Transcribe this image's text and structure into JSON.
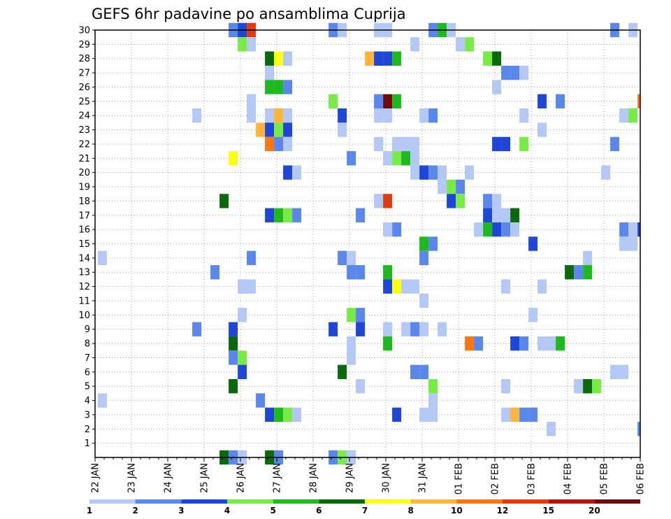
{
  "chart_data": {
    "type": "heatmap",
    "title": "GEFS 6hr padavine po ansamblima Cuprija",
    "xlabel": "",
    "ylabel": "",
    "x_tick_labels": [
      "22 JAN",
      "23 JAN",
      "24 JAN",
      "25 JAN",
      "26 JAN",
      "27 JAN",
      "28 JAN",
      "29 JAN",
      "30 JAN",
      "31 JAN",
      "01 FEB",
      "02 FEB",
      "03 FEB",
      "04 FEB",
      "05 FEB",
      "06 FEB"
    ],
    "y_tick_labels": [
      "1",
      "2",
      "3",
      "4",
      "5",
      "6",
      "7",
      "8",
      "9",
      "10",
      "11",
      "12",
      "13",
      "14",
      "15",
      "16",
      "17",
      "18",
      "19",
      "20",
      "21",
      "22",
      "23",
      "24",
      "25",
      "26",
      "27",
      "28",
      "29",
      "30"
    ],
    "x_range_steps": [
      0,
      60
    ],
    "x_step": "6hr",
    "y_range": [
      0,
      30
    ],
    "grid": true,
    "colorbar": {
      "labels": [
        "1",
        "2",
        "3",
        "4",
        "5",
        "6",
        "7",
        "8",
        "10",
        "12",
        "15",
        "20"
      ],
      "colors": [
        "#b4c8f5",
        "#5a87eb",
        "#1e46d7",
        "#78eb46",
        "#1eb91e",
        "#0a690a",
        "#ffff14",
        "#ffb43c",
        "#fa7814",
        "#e13c0f",
        "#b4140f",
        "#6e0a0a"
      ]
    },
    "cells": [
      [
        14.7,
        30,
        1
      ],
      [
        15.7,
        30,
        2
      ],
      [
        16.7,
        30,
        9
      ],
      [
        25.7,
        30,
        1
      ],
      [
        26.7,
        30,
        0
      ],
      [
        30.7,
        30,
        0
      ],
      [
        31.7,
        30,
        0
      ],
      [
        36.7,
        30,
        1
      ],
      [
        37.7,
        30,
        4
      ],
      [
        38.7,
        30,
        0
      ],
      [
        56.7,
        30,
        1
      ],
      [
        58.7,
        30,
        0
      ],
      [
        15.7,
        29,
        3
      ],
      [
        16.7,
        29,
        0
      ],
      [
        34.7,
        29,
        0
      ],
      [
        39.7,
        29,
        0
      ],
      [
        40.7,
        29,
        3
      ],
      [
        18.7,
        28,
        5
      ],
      [
        19.7,
        28,
        6
      ],
      [
        20.7,
        28,
        0
      ],
      [
        29.7,
        28,
        7
      ],
      [
        30.7,
        28,
        2
      ],
      [
        31.7,
        28,
        2
      ],
      [
        32.7,
        28,
        4
      ],
      [
        42.7,
        28,
        3
      ],
      [
        43.7,
        28,
        5
      ],
      [
        18.7,
        27,
        0
      ],
      [
        44.7,
        27,
        1
      ],
      [
        45.7,
        27,
        1
      ],
      [
        46.7,
        27,
        0
      ],
      [
        18.7,
        26,
        4
      ],
      [
        19.7,
        26,
        4
      ],
      [
        20.7,
        26,
        1
      ],
      [
        43.7,
        26,
        0
      ],
      [
        16.7,
        25,
        0
      ],
      [
        25.7,
        25,
        3
      ],
      [
        30.7,
        25,
        1
      ],
      [
        31.7,
        25,
        11
      ],
      [
        32.7,
        25,
        4
      ],
      [
        48.7,
        25,
        2
      ],
      [
        50.7,
        25,
        1
      ],
      [
        59.7,
        25,
        8
      ],
      [
        10.7,
        24,
        0
      ],
      [
        16.7,
        24,
        0
      ],
      [
        18.7,
        24,
        0
      ],
      [
        19.7,
        24,
        7
      ],
      [
        20.7,
        24,
        0
      ],
      [
        26.7,
        24,
        2
      ],
      [
        30.7,
        24,
        0
      ],
      [
        31.7,
        24,
        0
      ],
      [
        35.7,
        24,
        0
      ],
      [
        36.7,
        24,
        1
      ],
      [
        46.7,
        24,
        0
      ],
      [
        57.7,
        24,
        0
      ],
      [
        58.7,
        24,
        3
      ],
      [
        17.7,
        23,
        7
      ],
      [
        18.7,
        23,
        2
      ],
      [
        19.7,
        23,
        3
      ],
      [
        20.7,
        23,
        2
      ],
      [
        26.7,
        23,
        0
      ],
      [
        48.7,
        23,
        0
      ],
      [
        18.7,
        22,
        8
      ],
      [
        19.7,
        22,
        1
      ],
      [
        20.7,
        22,
        0
      ],
      [
        30.7,
        22,
        0
      ],
      [
        32.7,
        22,
        0
      ],
      [
        33.7,
        22,
        0
      ],
      [
        34.7,
        22,
        0
      ],
      [
        43.7,
        22,
        2
      ],
      [
        44.7,
        22,
        2
      ],
      [
        46.7,
        22,
        3
      ],
      [
        56.7,
        22,
        1
      ],
      [
        14.7,
        21,
        6
      ],
      [
        27.7,
        21,
        1
      ],
      [
        31.7,
        21,
        0
      ],
      [
        32.7,
        21,
        3
      ],
      [
        33.7,
        21,
        4
      ],
      [
        34.7,
        21,
        0
      ],
      [
        20.7,
        20,
        2
      ],
      [
        21.7,
        20,
        0
      ],
      [
        34.7,
        20,
        0
      ],
      [
        35.7,
        20,
        2
      ],
      [
        36.7,
        20,
        1
      ],
      [
        37.7,
        20,
        0
      ],
      [
        40.7,
        20,
        0
      ],
      [
        55.7,
        20,
        0
      ],
      [
        37.7,
        19,
        0
      ],
      [
        38.7,
        19,
        3
      ],
      [
        39.7,
        19,
        1
      ],
      [
        13.7,
        18,
        5
      ],
      [
        30.7,
        18,
        0
      ],
      [
        31.7,
        18,
        9
      ],
      [
        38.7,
        18,
        2
      ],
      [
        39.7,
        18,
        3
      ],
      [
        42.7,
        18,
        1
      ],
      [
        43.7,
        18,
        0
      ],
      [
        18.7,
        17,
        2
      ],
      [
        19.7,
        17,
        4
      ],
      [
        20.7,
        17,
        3
      ],
      [
        21.7,
        17,
        1
      ],
      [
        28.7,
        17,
        1
      ],
      [
        42.7,
        17,
        2
      ],
      [
        43.7,
        17,
        0
      ],
      [
        44.7,
        17,
        0
      ],
      [
        45.7,
        17,
        5
      ],
      [
        31.7,
        16,
        0
      ],
      [
        32.7,
        16,
        1
      ],
      [
        41.7,
        16,
        0
      ],
      [
        42.7,
        16,
        4
      ],
      [
        43.7,
        16,
        2
      ],
      [
        44.7,
        16,
        1
      ],
      [
        45.7,
        16,
        0
      ],
      [
        57.7,
        16,
        1
      ],
      [
        58.7,
        16,
        0
      ],
      [
        59.7,
        16,
        2
      ],
      [
        35.7,
        15,
        4
      ],
      [
        36.7,
        15,
        1
      ],
      [
        47.7,
        15,
        2
      ],
      [
        57.7,
        15,
        0
      ],
      [
        58.7,
        15,
        0
      ],
      [
        0.3,
        14,
        0
      ],
      [
        16.7,
        14,
        1
      ],
      [
        26.7,
        14,
        1
      ],
      [
        27.7,
        14,
        0
      ],
      [
        35.7,
        14,
        1
      ],
      [
        53.7,
        14,
        0
      ],
      [
        12.7,
        13,
        1
      ],
      [
        27.7,
        13,
        1
      ],
      [
        28.7,
        13,
        1
      ],
      [
        31.7,
        13,
        4
      ],
      [
        51.7,
        13,
        5
      ],
      [
        52.7,
        13,
        1
      ],
      [
        53.7,
        13,
        4
      ],
      [
        15.7,
        12,
        0
      ],
      [
        16.7,
        12,
        0
      ],
      [
        31.7,
        12,
        2
      ],
      [
        32.7,
        12,
        6
      ],
      [
        33.7,
        12,
        0
      ],
      [
        34.7,
        12,
        0
      ],
      [
        44.7,
        12,
        0
      ],
      [
        48.7,
        12,
        0
      ],
      [
        35.7,
        11,
        0
      ],
      [
        15.7,
        10,
        0
      ],
      [
        27.7,
        10,
        3
      ],
      [
        28.7,
        10,
        1
      ],
      [
        47.7,
        10,
        0
      ],
      [
        10.7,
        9,
        1
      ],
      [
        14.7,
        9,
        2
      ],
      [
        25.7,
        9,
        2
      ],
      [
        28.7,
        9,
        2
      ],
      [
        31.7,
        9,
        0
      ],
      [
        33.7,
        9,
        0
      ],
      [
        34.7,
        9,
        1
      ],
      [
        35.7,
        9,
        0
      ],
      [
        37.7,
        9,
        0
      ],
      [
        14.7,
        8,
        5
      ],
      [
        27.7,
        8,
        0
      ],
      [
        31.7,
        8,
        4
      ],
      [
        40.7,
        8,
        8
      ],
      [
        41.7,
        8,
        1
      ],
      [
        45.7,
        8,
        2
      ],
      [
        46.7,
        8,
        1
      ],
      [
        48.7,
        8,
        0
      ],
      [
        49.7,
        8,
        0
      ],
      [
        50.7,
        8,
        4
      ],
      [
        14.7,
        7,
        1
      ],
      [
        15.7,
        7,
        3
      ],
      [
        27.7,
        7,
        0
      ],
      [
        15.7,
        6,
        2
      ],
      [
        26.7,
        6,
        5
      ],
      [
        34.7,
        6,
        1
      ],
      [
        35.7,
        6,
        1
      ],
      [
        56.7,
        6,
        0
      ],
      [
        57.7,
        6,
        0
      ],
      [
        14.7,
        5,
        5
      ],
      [
        28.7,
        5,
        0
      ],
      [
        36.7,
        5,
        3
      ],
      [
        44.7,
        5,
        0
      ],
      [
        52.7,
        5,
        0
      ],
      [
        53.7,
        5,
        5
      ],
      [
        54.7,
        5,
        3
      ],
      [
        0.3,
        4,
        0
      ],
      [
        17.7,
        4,
        1
      ],
      [
        36.7,
        4,
        0
      ],
      [
        18.7,
        3,
        2
      ],
      [
        19.7,
        3,
        4
      ],
      [
        20.7,
        3,
        3
      ],
      [
        21.7,
        3,
        0
      ],
      [
        32.7,
        3,
        2
      ],
      [
        35.7,
        3,
        0
      ],
      [
        36.7,
        3,
        0
      ],
      [
        44.7,
        3,
        0
      ],
      [
        45.7,
        3,
        7
      ],
      [
        46.7,
        3,
        1
      ],
      [
        47.7,
        3,
        1
      ],
      [
        49.7,
        2,
        0
      ],
      [
        59.7,
        2,
        1
      ],
      [
        13.7,
        0,
        5
      ],
      [
        14.7,
        0,
        1
      ],
      [
        15.7,
        0,
        0
      ],
      [
        18.7,
        0,
        5
      ],
      [
        19.7,
        0,
        1
      ],
      [
        25.7,
        0,
        1
      ],
      [
        26.7,
        0,
        3
      ],
      [
        27.7,
        0,
        0
      ]
    ]
  }
}
